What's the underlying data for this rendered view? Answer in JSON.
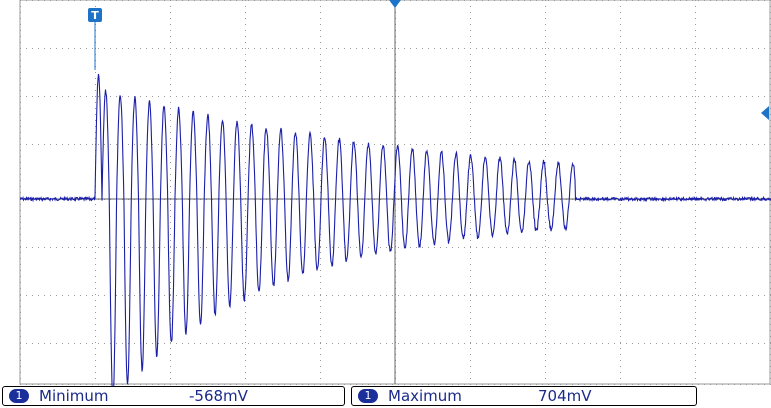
{
  "scope": {
    "trigger_marker_label": "T",
    "trace_color": "#1b1fa8",
    "grid_color": "#888888",
    "marker_color": "#1e73c8"
  },
  "measurements": [
    {
      "channel": "1",
      "name": "Minimum",
      "value": "-568mV"
    },
    {
      "channel": "1",
      "name": "Maximum",
      "value": "704mV"
    }
  ]
}
